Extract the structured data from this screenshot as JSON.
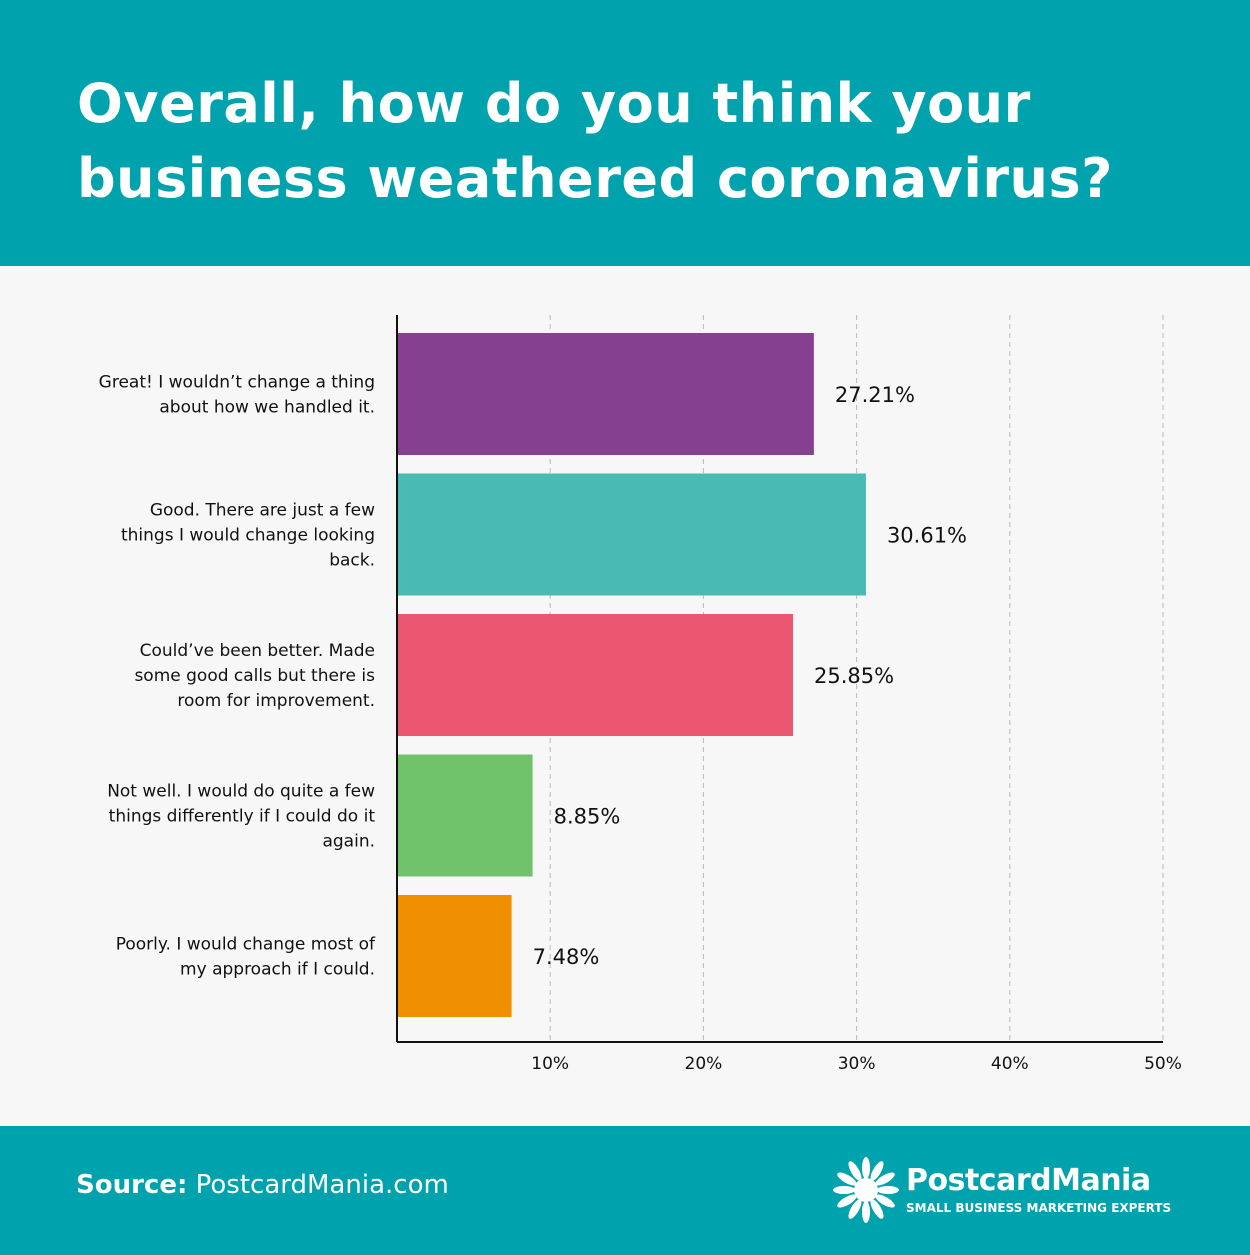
{
  "header": {
    "title": "Overall, how do you think your business weathered coronavirus?"
  },
  "chart_data": {
    "type": "bar",
    "orientation": "horizontal",
    "title": "Overall, how do you think your business weathered coronavirus?",
    "categories": [
      [
        "Great! I wouldn’t change a thing",
        "about how we handled it."
      ],
      [
        "Good. There are just a few",
        "things I would change looking",
        "back."
      ],
      [
        "Could’ve been better. Made",
        "some good calls but there is",
        "room for improvement."
      ],
      [
        "Not well. I would do quite a few",
        "things differently if I could do it",
        "again."
      ],
      [
        "Poorly. I would change most of",
        "my approach if I could."
      ]
    ],
    "values": [
      27.21,
      30.61,
      25.85,
      8.85,
      7.48
    ],
    "data_labels": [
      "27.21%",
      "30.61%",
      "25.85%",
      "8.85%",
      "7.48%"
    ],
    "colors": [
      "#85418f",
      "#4abab5",
      "#eb5770",
      "#70c36a",
      "#f09000"
    ],
    "xlim": [
      0,
      50
    ],
    "xticks": [
      10,
      20,
      30,
      40,
      50
    ],
    "xtick_labels": [
      "10%",
      "20%",
      "30%",
      "40%",
      "50%"
    ],
    "grid": "vertical dashed"
  },
  "footer": {
    "source_label": "Source:",
    "source_value": "PostcardMania.com",
    "brand": "PostcardMania",
    "tagline": "SMALL BUSINESS MARKETING EXPERTS"
  },
  "theme": {
    "header_bg": "#00a3ad"
  }
}
